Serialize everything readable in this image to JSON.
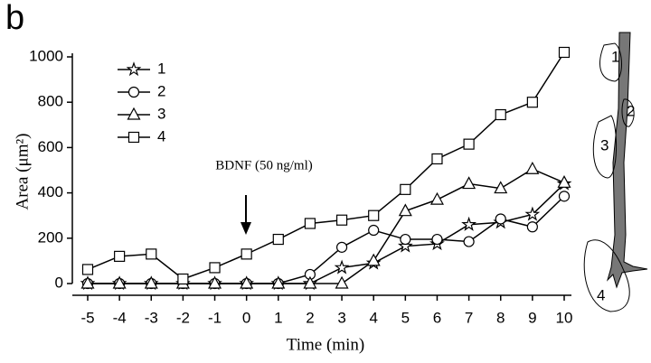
{
  "chart_data": {
    "type": "line",
    "panel_label": "b",
    "xlabel": "Time (min)",
    "ylabel": "Area (μm²)",
    "annotation": "BDNF (50 ng/ml)",
    "inset_labels": [
      "1",
      "2",
      "3",
      "4"
    ],
    "x": [
      -5,
      -4,
      -3,
      -2,
      -1,
      0,
      1,
      2,
      3,
      4,
      5,
      6,
      7,
      8,
      9,
      10
    ],
    "series": [
      {
        "name": "1",
        "color": "#000000",
        "marker": "star",
        "values": [
          0,
          0,
          0,
          0,
          0,
          0,
          0,
          0,
          70,
          90,
          165,
          175,
          260,
          270,
          305,
          440
        ]
      },
      {
        "name": "2",
        "color": "#000000",
        "marker": "circle",
        "values": [
          0,
          0,
          0,
          0,
          0,
          0,
          0,
          40,
          160,
          235,
          195,
          195,
          185,
          285,
          250,
          385
        ]
      },
      {
        "name": "3",
        "color": "#000000",
        "marker": "triangle",
        "values": [
          0,
          0,
          0,
          0,
          0,
          0,
          0,
          0,
          0,
          100,
          320,
          370,
          440,
          420,
          505,
          445
        ]
      },
      {
        "name": "4",
        "color": "#000000",
        "marker": "square",
        "values": [
          62,
          120,
          130,
          20,
          70,
          130,
          195,
          265,
          280,
          300,
          415,
          550,
          615,
          745,
          800,
          1020
        ]
      }
    ],
    "xlim": [
      -5,
      10
    ],
    "xticks": [
      -5,
      -4,
      -3,
      -2,
      -1,
      0,
      1,
      2,
      3,
      4,
      5,
      6,
      7,
      8,
      9,
      10
    ],
    "ylim": [
      0,
      1000
    ],
    "yticks": [
      0,
      200,
      400,
      600,
      800,
      1000
    ],
    "grid": false,
    "legend": "upper left"
  }
}
